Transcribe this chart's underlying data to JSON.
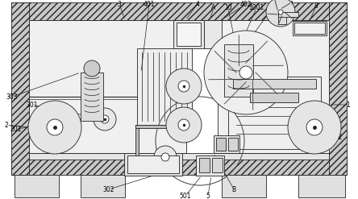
{
  "fig_w": 4.44,
  "fig_h": 2.47,
  "dpi": 100,
  "lc": "#222222",
  "lw": 0.6,
  "hatch_fc": "#d8d8d8",
  "inner_fc": "#f2f2f2",
  "roll_fc": "#e8e8e8",
  "box_fc": "#ebebeb"
}
